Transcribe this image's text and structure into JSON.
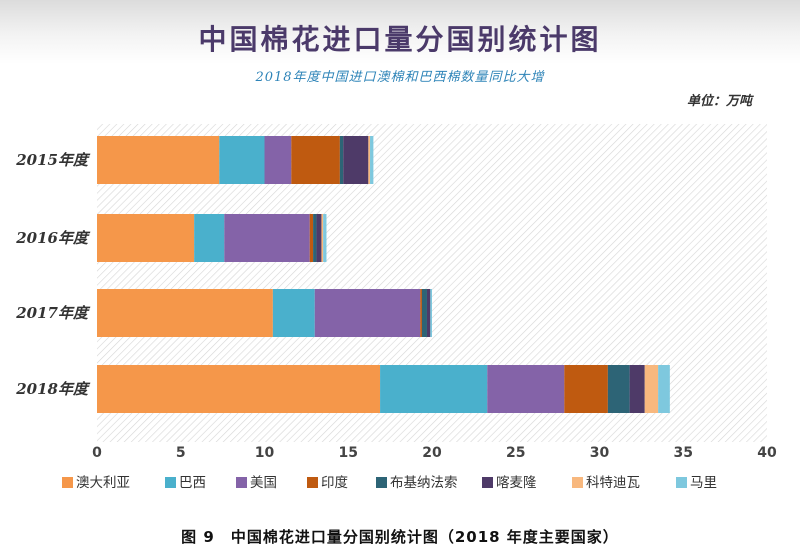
{
  "title": "中国棉花进口量分国别统计图",
  "subtitle": "2018年度中国进口澳棉和巴西棉数量同比大增",
  "unit_label": "单位：万吨",
  "caption": "图 9　中国棉花进口量分国别统计图（2018 年度主要国家）",
  "chart_data": {
    "type": "bar",
    "orientation": "horizontal",
    "stacked": true,
    "categories": [
      "2015年度",
      "2016年度",
      "2017年度",
      "2018年度"
    ],
    "series": [
      {
        "name": "澳大利亚",
        "color": "#f5974a",
        "values": [
          7.3,
          5.8,
          10.5,
          16.9
        ]
      },
      {
        "name": "巴西",
        "color": "#4ab0cc",
        "values": [
          2.7,
          1.8,
          2.5,
          6.4
        ]
      },
      {
        "name": "美国",
        "color": "#8463a8",
        "values": [
          1.6,
          5.1,
          6.3,
          4.6
        ]
      },
      {
        "name": "印度",
        "color": "#bf5a10",
        "values": [
          2.9,
          0.2,
          0.1,
          2.6
        ]
      },
      {
        "name": "布基纳法索",
        "color": "#2d6476",
        "values": [
          0.2,
          0.2,
          0.3,
          1.3
        ]
      },
      {
        "name": "喀麦隆",
        "color": "#4e3a68",
        "values": [
          1.5,
          0.3,
          0.2,
          0.9
        ]
      },
      {
        "name": "科特迪瓦",
        "color": "#f8b87e",
        "values": [
          0.1,
          0.1,
          0.0,
          0.8
        ]
      },
      {
        "name": "马里",
        "color": "#7ec8de",
        "values": [
          0.2,
          0.2,
          0.1,
          0.7
        ]
      }
    ],
    "xlim": [
      0,
      40
    ],
    "xticks": [
      "0",
      "5",
      "10",
      "15",
      "20",
      "25",
      "30",
      "35",
      "40"
    ],
    "grid": false,
    "legend_position": "bottom"
  }
}
